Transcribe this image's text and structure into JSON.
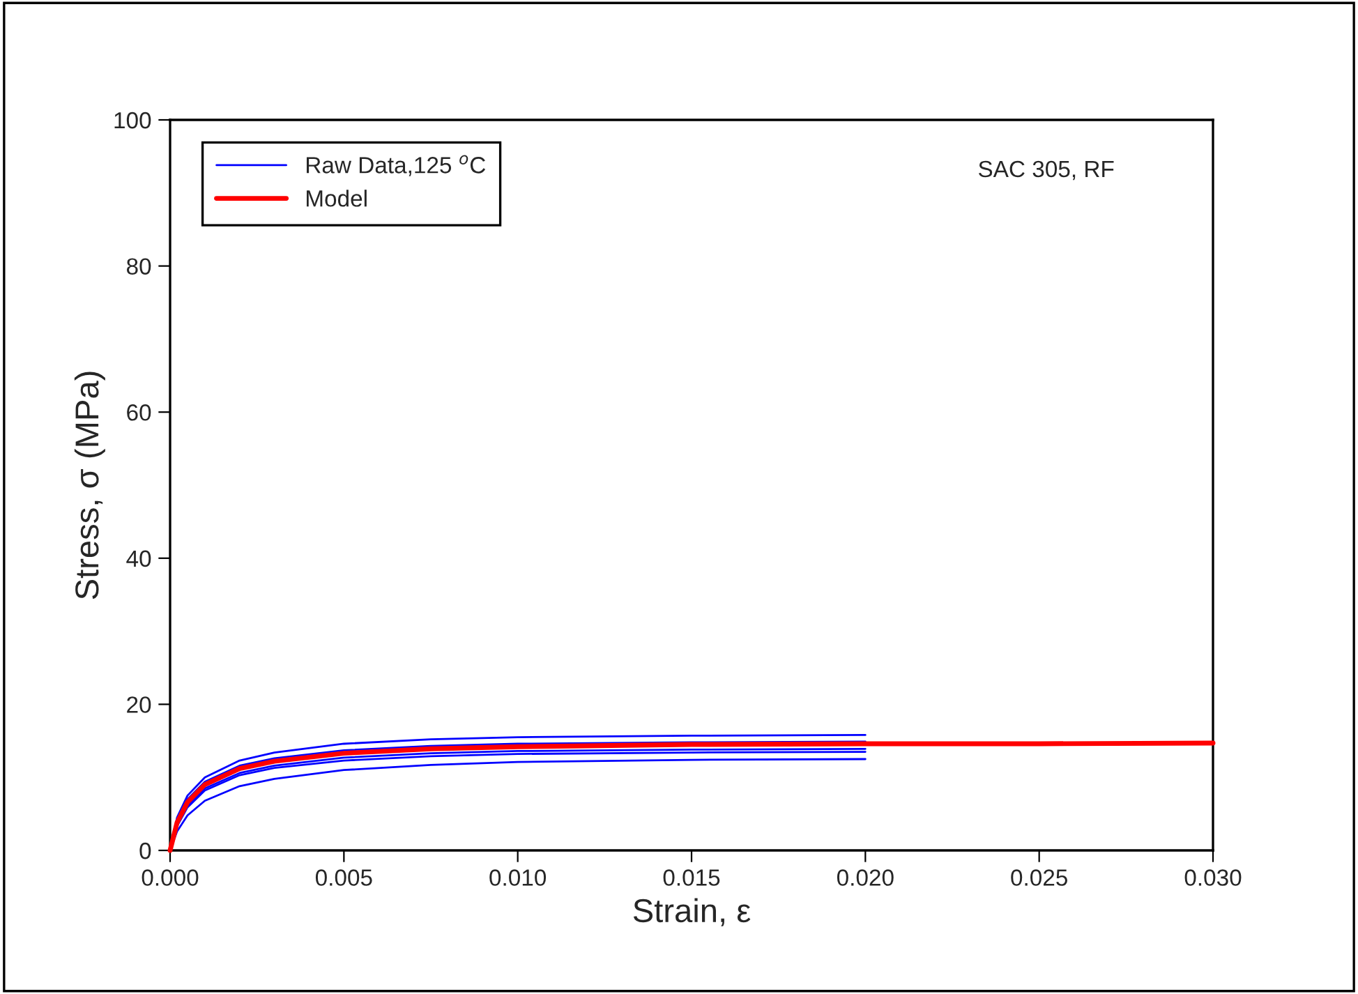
{
  "chart_data": {
    "type": "line",
    "xlabel": "Strain, ε",
    "ylabel": "Stress, σ (MPa)",
    "xlim": [
      0,
      0.03
    ],
    "xticks": [
      {
        "value": 0,
        "label": "0.000"
      },
      {
        "value": 0.005,
        "label": "0.005"
      },
      {
        "value": 0.01,
        "label": "0.010"
      },
      {
        "value": 0.015,
        "label": "0.015"
      },
      {
        "value": 0.02,
        "label": "0.020"
      },
      {
        "value": 0.025,
        "label": "0.025"
      },
      {
        "value": 0.03,
        "label": "0.030"
      }
    ],
    "ylim": [
      0,
      100
    ],
    "yticks": [
      0,
      20,
      40,
      60,
      80,
      100
    ],
    "grid": false,
    "legend": "top left",
    "marker": "none",
    "line_style": "solid",
    "annotations": [
      "SAC 305, RF"
    ],
    "series": [
      {
        "name": "Raw Data,125 $^{o}$C",
        "color": "#0000ff",
        "x": [
          0,
          0.0002,
          0.0005,
          0.001,
          0.002,
          0.003,
          0.005,
          0.0075,
          0.01,
          0.015,
          0.02
        ],
        "values": [
          0,
          4.5,
          7.5,
          10,
          12.3,
          13.4,
          14.6,
          15.2,
          15.5,
          15.7,
          15.8
        ]
      },
      {
        "color": "#0000ff",
        "x": [
          0,
          0.0002,
          0.0005,
          0.001,
          0.002,
          0.003,
          0.005,
          0.0075,
          0.01,
          0.015,
          0.02
        ],
        "values": [
          0,
          4.2,
          7.0,
          9.4,
          11.6,
          12.6,
          13.7,
          14.3,
          14.6,
          14.8,
          14.9
        ]
      },
      {
        "color": "#0000ff",
        "x": [
          0,
          0.0002,
          0.0005,
          0.001,
          0.002,
          0.003,
          0.005,
          0.0075,
          0.01,
          0.015,
          0.02
        ],
        "values": [
          0,
          3.5,
          6.2,
          8.5,
          10.6,
          11.6,
          12.7,
          13.3,
          13.6,
          13.8,
          13.9
        ]
      },
      {
        "color": "#0000ff",
        "x": [
          0,
          0.0002,
          0.0005,
          0.001,
          0.002,
          0.003,
          0.005,
          0.0075,
          0.01,
          0.015,
          0.02
        ],
        "values": [
          0,
          3.3,
          5.9,
          8.2,
          10.3,
          11.3,
          12.3,
          12.9,
          13.2,
          13.4,
          13.5
        ]
      },
      {
        "color": "#0000ff",
        "x": [
          0,
          0.0002,
          0.0005,
          0.001,
          0.002,
          0.003,
          0.005,
          0.0075,
          0.01,
          0.015,
          0.02
        ],
        "values": [
          0,
          2.6,
          4.8,
          6.8,
          8.8,
          9.8,
          11.0,
          11.7,
          12.1,
          12.4,
          12.5
        ]
      },
      {
        "name": "Model",
        "color": "#ff0000",
        "x": [
          0,
          0.0002,
          0.0005,
          0.001,
          0.002,
          0.003,
          0.005,
          0.0075,
          0.01,
          0.015,
          0.02,
          0.025,
          0.03
        ],
        "values": [
          0,
          3.8,
          6.6,
          9.0,
          11.2,
          12.2,
          13.3,
          13.9,
          14.2,
          14.5,
          14.6,
          14.6,
          14.7
        ]
      }
    ]
  }
}
